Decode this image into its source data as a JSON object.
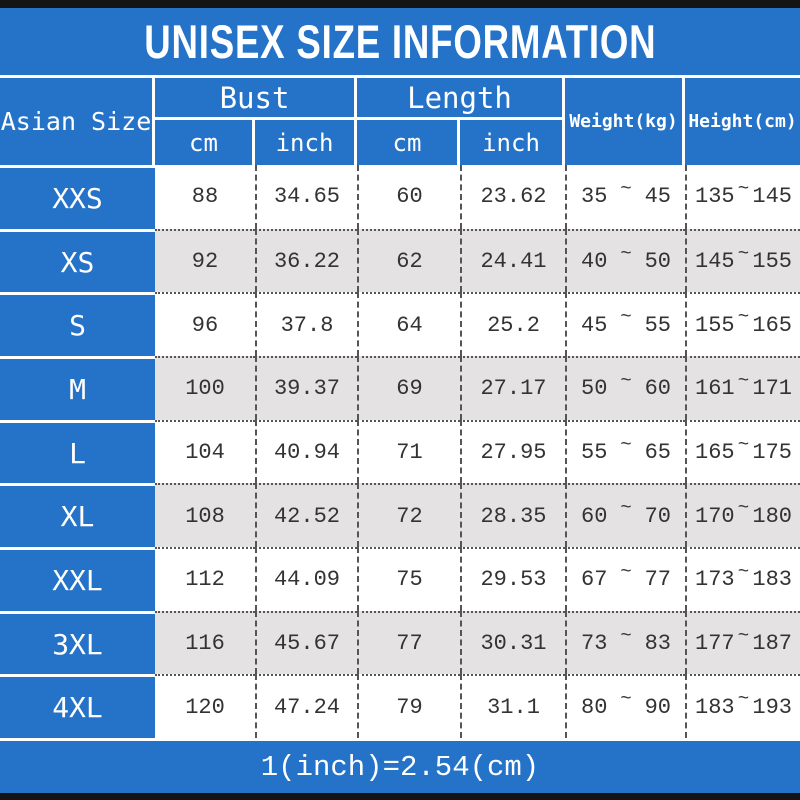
{
  "title": "UNISEX SIZE INFORMATION",
  "footer": {
    "note": "1(inch)=2.54(cm)"
  },
  "colors": {
    "accent_blue": "#2573c8",
    "alt_row_gray": "#e4e2e3",
    "edge_bar_black": "#141414"
  },
  "table": {
    "corner_header": "Asian Size",
    "tilde": "~",
    "groups": [
      {
        "label": "Bust",
        "sub": [
          "cm",
          "inch"
        ]
      },
      {
        "label": "Length",
        "sub": [
          "cm",
          "inch"
        ]
      }
    ],
    "weight_header": "Weight(kg)",
    "height_header": "Height(cm)",
    "rows": [
      {
        "size": "XXS",
        "bust_cm": "88",
        "bust_in": "34.65",
        "len_cm": "60",
        "len_in": "23.62",
        "wt_min": "35",
        "wt_max": "45",
        "ht_min": "135",
        "ht_max": "145"
      },
      {
        "size": "XS",
        "bust_cm": "92",
        "bust_in": "36.22",
        "len_cm": "62",
        "len_in": "24.41",
        "wt_min": "40",
        "wt_max": "50",
        "ht_min": "145",
        "ht_max": "155"
      },
      {
        "size": "S",
        "bust_cm": "96",
        "bust_in": "37.8",
        "len_cm": "64",
        "len_in": "25.2",
        "wt_min": "45",
        "wt_max": "55",
        "ht_min": "155",
        "ht_max": "165"
      },
      {
        "size": "M",
        "bust_cm": "100",
        "bust_in": "39.37",
        "len_cm": "69",
        "len_in": "27.17",
        "wt_min": "50",
        "wt_max": "60",
        "ht_min": "161",
        "ht_max": "171"
      },
      {
        "size": "L",
        "bust_cm": "104",
        "bust_in": "40.94",
        "len_cm": "71",
        "len_in": "27.95",
        "wt_min": "55",
        "wt_max": "65",
        "ht_min": "165",
        "ht_max": "175"
      },
      {
        "size": "XL",
        "bust_cm": "108",
        "bust_in": "42.52",
        "len_cm": "72",
        "len_in": "28.35",
        "wt_min": "60",
        "wt_max": "70",
        "ht_min": "170",
        "ht_max": "180"
      },
      {
        "size": "XXL",
        "bust_cm": "112",
        "bust_in": "44.09",
        "len_cm": "75",
        "len_in": "29.53",
        "wt_min": "67",
        "wt_max": "77",
        "ht_min": "173",
        "ht_max": "183"
      },
      {
        "size": "3XL",
        "bust_cm": "116",
        "bust_in": "45.67",
        "len_cm": "77",
        "len_in": "30.31",
        "wt_min": "73",
        "wt_max": "83",
        "ht_min": "177",
        "ht_max": "187"
      },
      {
        "size": "4XL",
        "bust_cm": "120",
        "bust_in": "47.24",
        "len_cm": "79",
        "len_in": "31.1",
        "wt_min": "80",
        "wt_max": "90",
        "ht_min": "183",
        "ht_max": "193"
      }
    ]
  },
  "chart_data": {
    "type": "table",
    "title": "UNISEX SIZE INFORMATION",
    "columns": [
      "Asian Size",
      "Bust cm",
      "Bust inch",
      "Length cm",
      "Length inch",
      "Weight(kg)",
      "Height(cm)"
    ],
    "rows": [
      [
        "XXS",
        88,
        34.65,
        60,
        23.62,
        "35~45",
        "135~145"
      ],
      [
        "XS",
        92,
        36.22,
        62,
        24.41,
        "40~50",
        "145~155"
      ],
      [
        "S",
        96,
        37.8,
        64,
        25.2,
        "45~55",
        "155~165"
      ],
      [
        "M",
        100,
        39.37,
        69,
        27.17,
        "50~60",
        "161~171"
      ],
      [
        "L",
        104,
        40.94,
        71,
        27.95,
        "55~65",
        "165~175"
      ],
      [
        "XL",
        108,
        42.52,
        72,
        28.35,
        "60~70",
        "170~180"
      ],
      [
        "XXL",
        112,
        44.09,
        75,
        29.53,
        "67~77",
        "173~183"
      ],
      [
        "3XL",
        116,
        45.67,
        77,
        30.31,
        "73~83",
        "177~187"
      ],
      [
        "4XL",
        120,
        47.24,
        79,
        31.1,
        "80~90",
        "183~193"
      ]
    ],
    "note": "1(inch)=2.54(cm)"
  }
}
